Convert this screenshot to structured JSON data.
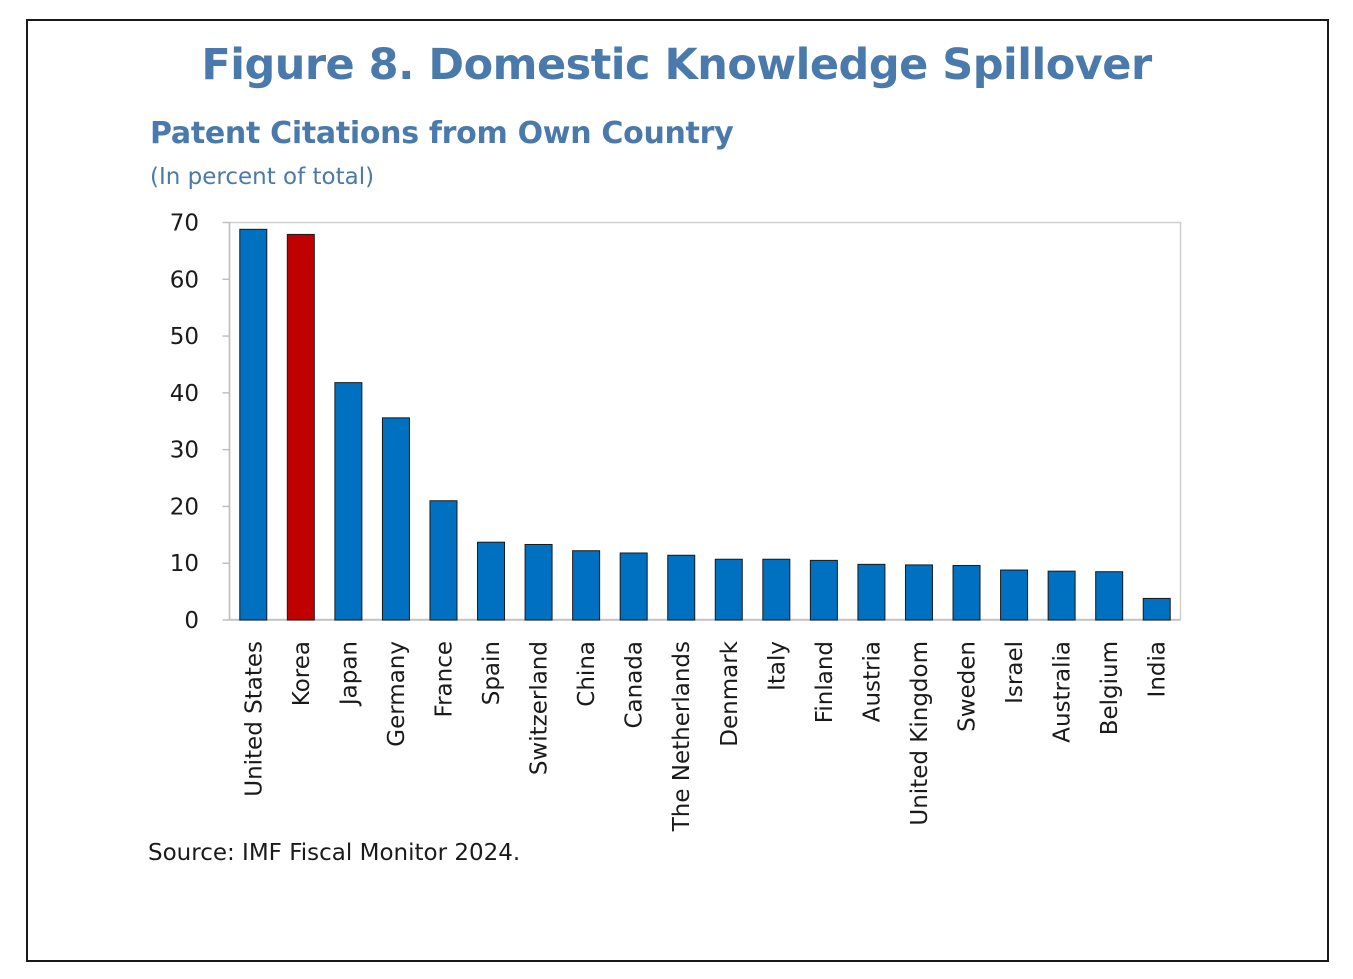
{
  "figure": {
    "title": "Figure 8. Domestic Knowledge Spillover",
    "source": "Source: IMF Fiscal Monitor 2024."
  },
  "chart_data": {
    "type": "bar",
    "title": "Patent Citations from Own Country",
    "subtitle": "(In percent of total)",
    "xlabel": "",
    "ylabel": "",
    "ylim": [
      0,
      70
    ],
    "yticks": [
      0,
      10,
      20,
      30,
      40,
      50,
      60,
      70
    ],
    "grid": false,
    "categories": [
      "United States",
      "Korea",
      "Japan",
      "Germany",
      "France",
      "Spain",
      "Switzerland",
      "China",
      "Canada",
      "The Netherlands",
      "Denmark",
      "Italy",
      "Finland",
      "Austria",
      "United Kingdom",
      "Sweden",
      "Israel",
      "Australia",
      "Belgium",
      "India"
    ],
    "values": [
      68.8,
      67.9,
      41.8,
      35.6,
      21.0,
      13.7,
      13.3,
      12.2,
      11.8,
      11.4,
      10.7,
      10.7,
      10.5,
      9.8,
      9.7,
      9.6,
      8.8,
      8.6,
      8.5,
      3.8
    ],
    "colors": {
      "default": "#0070c0",
      "highlight": "#c00000",
      "highlight_category": "Korea"
    }
  }
}
